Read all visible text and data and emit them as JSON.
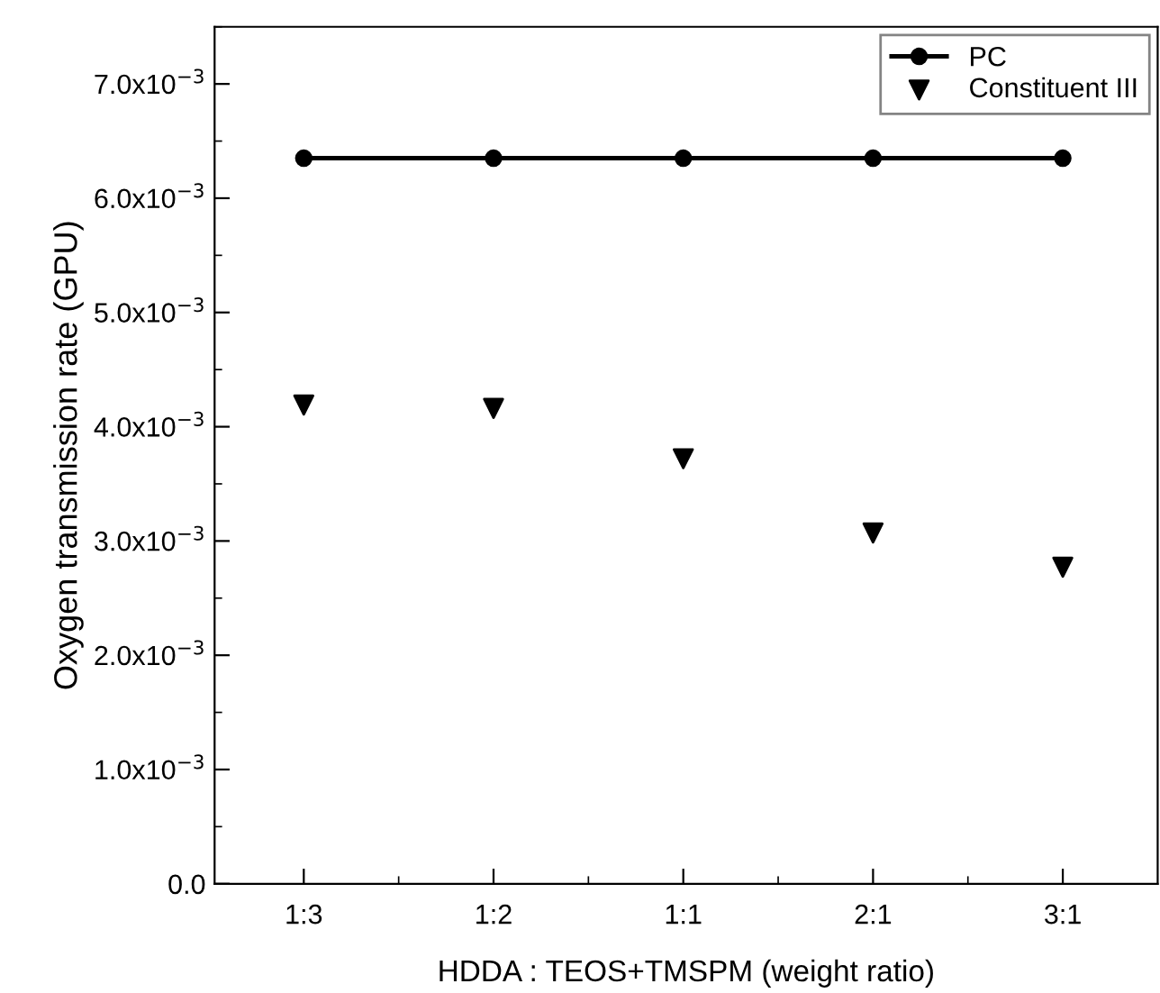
{
  "chart_data": {
    "type": "line",
    "xlabel": "HDDA : TEOS+TMSPM (weight ratio)",
    "ylabel": "Oxygen transmission rate (GPU)",
    "categories": [
      "1:3",
      "1:2",
      "1:1",
      "2:1",
      "3:1"
    ],
    "series": [
      {
        "name": "PC",
        "marker": "circle",
        "line_style": "solid",
        "color": "#000000",
        "values": [
          0.00635,
          0.00635,
          0.00635,
          0.00635,
          0.00635
        ]
      },
      {
        "name": "Constituent III",
        "type": "scatter",
        "marker": "triangle",
        "color": "#000000",
        "values": [
          0.00419,
          0.00416,
          0.00372,
          0.00307,
          0.00277
        ]
      }
    ],
    "ylim": [
      0,
      0.0075
    ],
    "yticks": [
      {
        "value": 0,
        "label": "0.0"
      },
      {
        "value": 0.001,
        "label": "1.0x10$^{−3}$"
      },
      {
        "value": 0.002,
        "label": "2.0x10$^{−3}$"
      },
      {
        "value": 0.003,
        "label": "3.0x10$^{−3}$"
      },
      {
        "value": 0.004,
        "label": "4.0x10$^{−3}$"
      },
      {
        "value": 0.005,
        "label": "5.0x10$^{−3}$"
      },
      {
        "value": 0.006,
        "label": "6.0x10$^{−3}$"
      },
      {
        "value": 0.007,
        "label": "7.0x10$^{−3}$"
      }
    ],
    "legend": "top right",
    "grid": false
  }
}
